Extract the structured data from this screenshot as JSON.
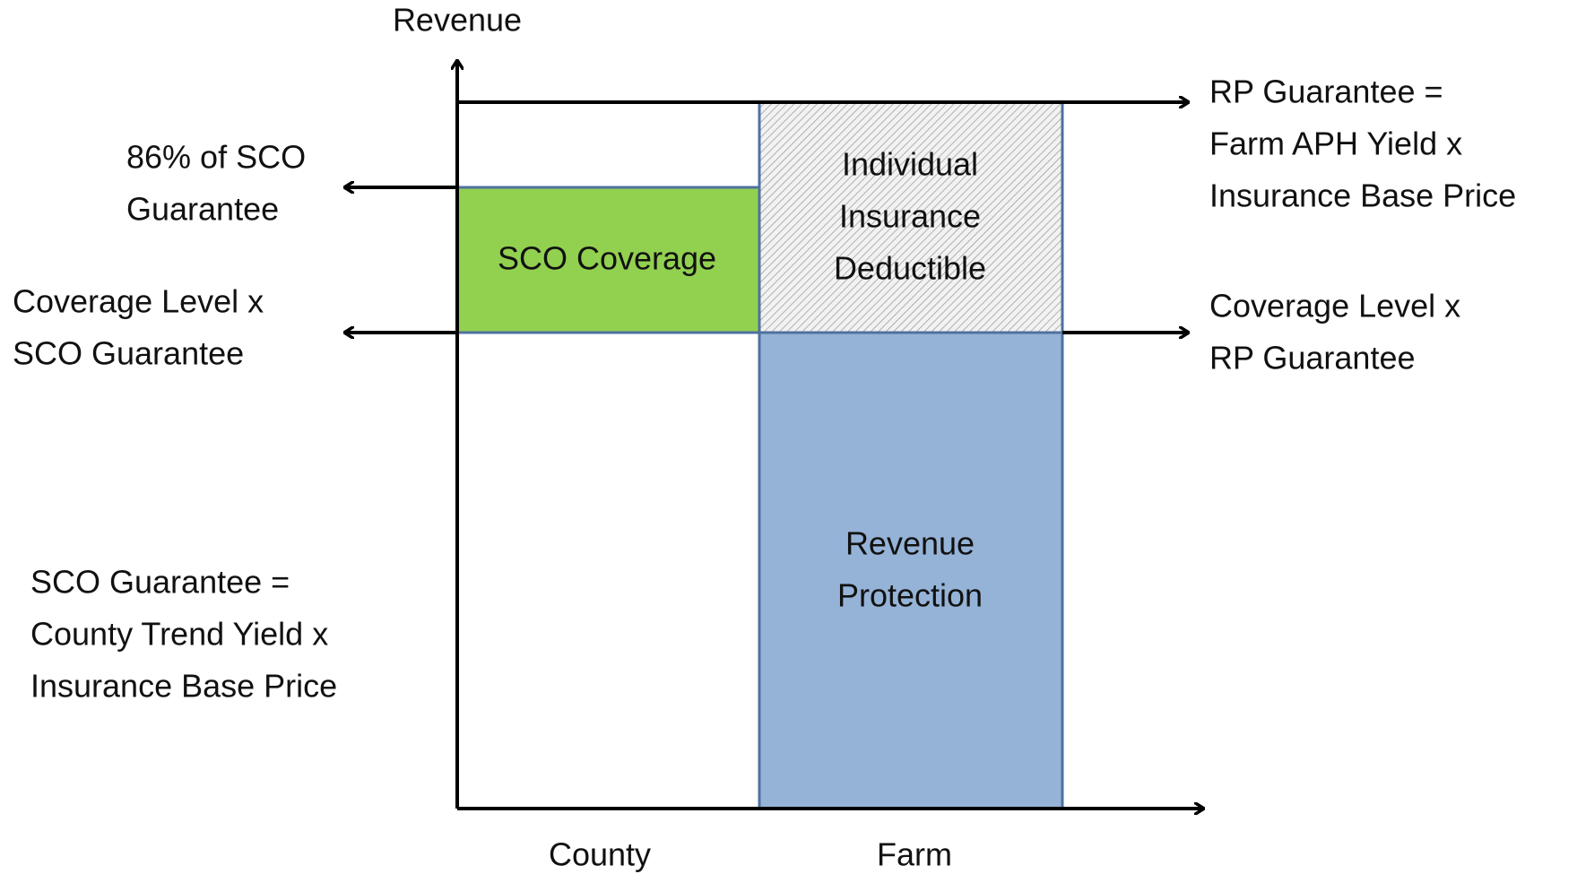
{
  "axis": {
    "y_label": "Revenue",
    "x_categories": [
      "County",
      "Farm"
    ]
  },
  "left_labels": [
    {
      "lines": [
        "86% of SCO",
        "Guarantee"
      ]
    },
    {
      "lines": [
        "Coverage Level x",
        "SCO Guarantee"
      ]
    },
    {
      "lines": [
        "SCO Guarantee =",
        "County Trend Yield x",
        "Insurance Base Price"
      ]
    }
  ],
  "right_labels": [
    {
      "lines": [
        "RP Guarantee =",
        "Farm APH Yield x",
        "Insurance Base Price"
      ]
    },
    {
      "lines": [
        "Coverage Level x",
        "RP Guarantee"
      ]
    }
  ],
  "boxes": [
    {
      "lines": [
        "SCO Coverage"
      ]
    },
    {
      "lines": [
        "Individual",
        "Insurance",
        "Deductible"
      ]
    },
    {
      "lines": [
        "Revenue",
        "Protection"
      ]
    }
  ]
}
